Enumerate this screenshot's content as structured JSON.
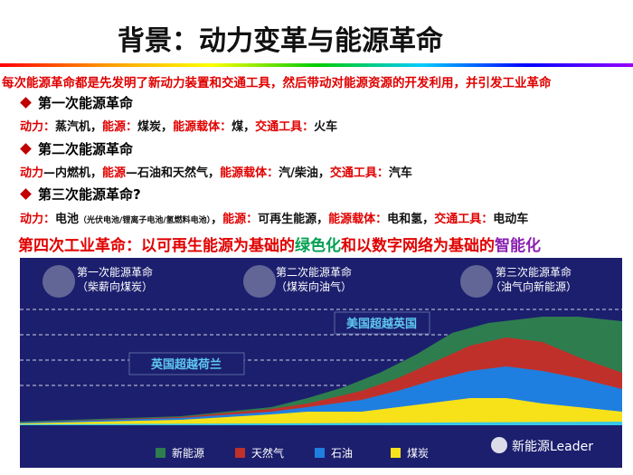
{
  "title": "背景：动力变革与能源革命",
  "intro": "每次能源革命都是先发明了新动力装置和交通工具，然后带动对能源资源的开发利用，并引发工业革命",
  "sections": [
    {
      "heading": "第一次能源革命",
      "segments": [
        {
          "red": "动力："
        },
        {
          "black": "蒸汽机，"
        },
        {
          "red": "能源："
        },
        {
          "black": "煤炭，"
        },
        {
          "red": "能源载体："
        },
        {
          "black": "煤，"
        },
        {
          "red": "交通工具："
        },
        {
          "black": "火车"
        }
      ]
    },
    {
      "heading": "第二次能源革命",
      "segments": [
        {
          "red": "动力"
        },
        {
          "black": "—内燃机，"
        },
        {
          "red": "能源"
        },
        {
          "black": "—石油和天然气，"
        },
        {
          "red": "能源载体："
        },
        {
          "black": "汽/柴油，"
        },
        {
          "red": "交通工具："
        },
        {
          "black": "汽车"
        }
      ]
    },
    {
      "heading": "第三次能源革命?",
      "segments": [
        {
          "red": "动力："
        },
        {
          "black": "电池"
        },
        {
          "small": "（光伏电池/锂离子电池/氢燃料电池）"
        },
        {
          "black": "，"
        },
        {
          "red": "能源："
        },
        {
          "black": "可再生能源，"
        },
        {
          "red": "能源载体："
        },
        {
          "black": "电和氢，"
        },
        {
          "red": "交通工具："
        },
        {
          "black": "电动车"
        }
      ]
    }
  ],
  "conclusion": [
    {
      "red": "第四次工业革命：以可再生能源为基础的"
    },
    {
      "green": "绿色化"
    },
    {
      "red": "和以数字网络为基础的"
    },
    {
      "purple": "智能化"
    }
  ],
  "chart": {
    "eras": [
      {
        "title": "第一次能源革命",
        "subtitle": "（柴薪向煤炭）"
      },
      {
        "title": "第二次能源革命",
        "subtitle": "（煤炭向油气）"
      },
      {
        "title": "第三次能源革命",
        "subtitle": "（油气向新能源）"
      }
    ],
    "callouts": [
      "英国超越荷兰",
      "美国超越英国"
    ],
    "legend": [
      "新能源",
      "天然气",
      "石油",
      "煤炭"
    ],
    "watermark": "新能源Leader"
  }
}
